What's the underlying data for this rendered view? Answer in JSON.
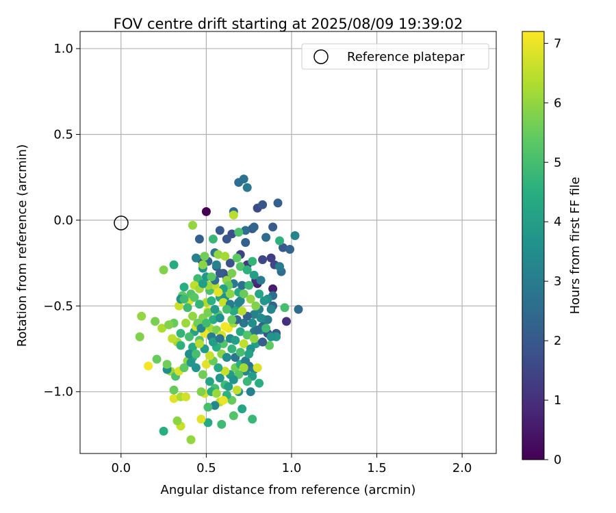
{
  "chart_data": {
    "type": "scatter",
    "title": "FOV centre drift starting at 2025/08/09 19:39:02",
    "xlabel": "Angular distance from reference (arcmin)",
    "ylabel": "Rotation from reference (arcmin)",
    "xlim": [
      -0.24,
      2.2
    ],
    "ylim": [
      -1.36,
      1.1
    ],
    "xticks": [
      0.0,
      0.5,
      1.0,
      1.5,
      2.0
    ],
    "xtick_labels": [
      "0.0",
      "0.5",
      "1.0",
      "1.5",
      "2.0"
    ],
    "yticks": [
      -1.0,
      -0.5,
      0.0,
      0.5,
      1.0
    ],
    "ytick_labels": [
      "−1.0",
      "−0.5",
      "0.0",
      "0.5",
      "1.0"
    ],
    "grid": true,
    "legend": {
      "position": "top-right",
      "entries": [
        "Reference platepar"
      ]
    },
    "reference_point": {
      "x": 0.0,
      "y": 0.0,
      "label": "Reference platepar"
    },
    "colorbar": {
      "label": "Hours from first FF file",
      "colormap": "viridis",
      "range": [
        0,
        7.2
      ],
      "ticks": [
        0,
        1,
        2,
        3,
        4,
        5,
        6,
        7
      ],
      "tick_labels": [
        "0",
        "1",
        "2",
        "3",
        "4",
        "5",
        "6",
        "7"
      ]
    },
    "points": [
      [
        0.5,
        0.05,
        0.0
      ],
      [
        0.89,
        -0.4,
        0.6
      ],
      [
        0.8,
        -0.37,
        0.7
      ],
      [
        0.97,
        -0.59,
        1.0
      ],
      [
        0.79,
        -0.35,
        0.9
      ],
      [
        0.74,
        -0.26,
        1.2
      ],
      [
        0.8,
        0.07,
        1.6
      ],
      [
        0.83,
        0.09,
        1.9
      ],
      [
        0.9,
        -0.26,
        1.6
      ],
      [
        0.88,
        -0.22,
        1.3
      ],
      [
        0.95,
        -0.16,
        2.0
      ],
      [
        0.83,
        -0.23,
        1.5
      ],
      [
        0.77,
        -0.05,
        1.8
      ],
      [
        0.7,
        -0.2,
        1.4
      ],
      [
        0.65,
        -0.08,
        1.7
      ],
      [
        0.73,
        -0.13,
        2.2
      ],
      [
        0.69,
        0.22,
        2.6
      ],
      [
        0.72,
        0.24,
        2.7
      ],
      [
        0.74,
        0.19,
        2.9
      ],
      [
        0.66,
        0.05,
        2.5
      ],
      [
        0.46,
        -0.11,
        2.2
      ],
      [
        0.62,
        -0.11,
        1.9
      ],
      [
        0.58,
        -0.06,
        2.0
      ],
      [
        0.64,
        -0.25,
        1.8
      ],
      [
        0.56,
        -0.27,
        2.1
      ],
      [
        0.47,
        -0.23,
        1.4
      ],
      [
        0.51,
        -0.24,
        2.3
      ],
      [
        0.6,
        -0.31,
        1.9
      ],
      [
        0.55,
        -0.19,
        2.8
      ],
      [
        0.92,
        0.1,
        2.2
      ],
      [
        0.89,
        -0.04,
        2.1
      ],
      [
        0.78,
        -0.04,
        2.4
      ],
      [
        0.73,
        -0.06,
        2.6
      ],
      [
        0.85,
        -0.1,
        2.5
      ],
      [
        0.99,
        -0.17,
        2.3
      ],
      [
        0.94,
        -0.3,
        2.6
      ],
      [
        0.93,
        -0.27,
        3.0
      ],
      [
        1.02,
        -0.09,
        3.2
      ],
      [
        0.93,
        -0.12,
        4.6
      ],
      [
        0.96,
        -0.51,
        5.0
      ],
      [
        1.04,
        -0.52,
        2.5
      ],
      [
        0.89,
        -0.44,
        2.6
      ],
      [
        0.86,
        -0.46,
        3.6
      ],
      [
        0.89,
        -0.5,
        2.3
      ],
      [
        0.81,
        -0.52,
        3.2
      ],
      [
        0.84,
        -0.58,
        4.4
      ],
      [
        0.82,
        -0.64,
        3.5
      ],
      [
        0.91,
        -0.66,
        2.0
      ],
      [
        0.86,
        -0.66,
        1.8
      ],
      [
        0.83,
        -0.62,
        2.4
      ],
      [
        0.91,
        -0.68,
        3.8
      ],
      [
        0.79,
        -0.72,
        4.0
      ],
      [
        0.87,
        -0.73,
        5.4
      ],
      [
        0.78,
        -0.65,
        2.9
      ],
      [
        0.78,
        -0.55,
        3.1
      ],
      [
        0.72,
        -0.6,
        2.8
      ],
      [
        0.74,
        -0.56,
        2.2
      ],
      [
        0.68,
        -0.52,
        4.0
      ],
      [
        0.7,
        -0.47,
        3.4
      ],
      [
        0.69,
        -0.42,
        4.3
      ],
      [
        0.71,
        -0.38,
        2.7
      ],
      [
        0.66,
        -0.37,
        2.9
      ],
      [
        0.62,
        -0.34,
        1.7
      ],
      [
        0.58,
        -0.31,
        2.1
      ],
      [
        0.56,
        -0.26,
        3.2
      ],
      [
        0.65,
        -0.31,
        5.7
      ],
      [
        0.69,
        -0.07,
        5.1
      ],
      [
        0.66,
        0.03,
        6.4
      ],
      [
        0.54,
        -0.11,
        4.8
      ],
      [
        0.57,
        -0.2,
        6.0
      ],
      [
        0.44,
        -0.22,
        3.2
      ],
      [
        0.48,
        -0.28,
        3.6
      ],
      [
        0.49,
        -0.21,
        5.6
      ],
      [
        0.61,
        -0.21,
        6.2
      ],
      [
        0.68,
        -0.22,
        5.4
      ],
      [
        0.7,
        -0.27,
        5.2
      ],
      [
        0.74,
        -0.29,
        4.6
      ],
      [
        0.77,
        -0.24,
        4.7
      ],
      [
        0.42,
        -0.03,
        6.0
      ],
      [
        0.5,
        -0.33,
        3.8
      ],
      [
        0.45,
        -0.34,
        4.9
      ],
      [
        0.52,
        -0.41,
        5.1
      ],
      [
        0.55,
        -0.38,
        6.4
      ],
      [
        0.58,
        -0.45,
        4.2
      ],
      [
        0.61,
        -0.45,
        3.6
      ],
      [
        0.62,
        -0.35,
        6.0
      ],
      [
        0.63,
        -0.38,
        5.5
      ],
      [
        0.64,
        -0.43,
        5.9
      ],
      [
        0.6,
        -0.48,
        6.6
      ],
      [
        0.57,
        -0.55,
        5.3
      ],
      [
        0.54,
        -0.58,
        4.5
      ],
      [
        0.51,
        -0.53,
        6.9
      ],
      [
        0.48,
        -0.57,
        5.8
      ],
      [
        0.52,
        -0.63,
        6.3
      ],
      [
        0.49,
        -0.66,
        7.0
      ],
      [
        0.46,
        -0.7,
        5.2
      ],
      [
        0.43,
        -0.65,
        4.1
      ],
      [
        0.4,
        -0.68,
        5.0
      ],
      [
        0.42,
        -0.74,
        4.4
      ],
      [
        0.38,
        -0.6,
        6.1
      ],
      [
        0.35,
        -0.66,
        4.7
      ],
      [
        0.33,
        -0.71,
        6.2
      ],
      [
        0.31,
        -0.6,
        5.5
      ],
      [
        0.34,
        -0.5,
        6.6
      ],
      [
        0.36,
        -0.44,
        5.4
      ],
      [
        0.37,
        -0.39,
        4.5
      ],
      [
        0.4,
        -0.47,
        6.7
      ],
      [
        0.42,
        -0.56,
        6.0
      ],
      [
        0.44,
        -0.62,
        6.8
      ],
      [
        0.41,
        -0.43,
        5.2
      ],
      [
        0.39,
        -0.51,
        4.9
      ],
      [
        0.29,
        -0.88,
        6.1
      ],
      [
        0.27,
        -0.87,
        3.5
      ],
      [
        0.32,
        -0.91,
        5.1
      ],
      [
        0.34,
        -0.88,
        6.8
      ],
      [
        0.39,
        -0.82,
        5.9
      ],
      [
        0.42,
        -0.8,
        4.3
      ],
      [
        0.44,
        -0.86,
        3.7
      ],
      [
        0.48,
        -0.9,
        5.6
      ],
      [
        0.5,
        -0.84,
        6.9
      ],
      [
        0.52,
        -0.94,
        4.2
      ],
      [
        0.55,
        -0.98,
        5.0
      ],
      [
        0.58,
        -0.92,
        3.8
      ],
      [
        0.61,
        -0.96,
        4.9
      ],
      [
        0.64,
        -0.9,
        3.9
      ],
      [
        0.67,
        -0.86,
        5.6
      ],
      [
        0.7,
        -0.84,
        4.5
      ],
      [
        0.73,
        -0.88,
        3.4
      ],
      [
        0.75,
        -0.85,
        2.7
      ],
      [
        0.78,
        -0.87,
        3.1
      ],
      [
        0.8,
        -0.86,
        6.8
      ],
      [
        0.77,
        -0.91,
        4.0
      ],
      [
        0.74,
        -0.94,
        4.8
      ],
      [
        0.69,
        -1.0,
        3.6
      ],
      [
        0.65,
        -1.05,
        5.5
      ],
      [
        0.62,
        -1.02,
        4.6
      ],
      [
        0.58,
        -1.06,
        6.5
      ],
      [
        0.55,
        -1.08,
        3.3
      ],
      [
        0.51,
        -1.09,
        5.0
      ],
      [
        0.49,
        -1.01,
        6.7
      ],
      [
        0.47,
        -1.0,
        5.8
      ],
      [
        0.53,
        -1.0,
        4.4
      ],
      [
        0.56,
        -1.01,
        6.1
      ],
      [
        0.6,
        -1.05,
        7.0
      ],
      [
        0.68,
        -0.99,
        6.5
      ],
      [
        0.71,
        -1.1,
        4.2
      ],
      [
        0.66,
        -1.14,
        5.2
      ],
      [
        0.77,
        -1.16,
        4.8
      ],
      [
        0.81,
        -0.95,
        4.5
      ],
      [
        0.76,
        -1.0,
        3.1
      ],
      [
        0.59,
        -1.19,
        4.9
      ],
      [
        0.51,
        -1.18,
        4.3
      ],
      [
        0.47,
        -1.16,
        6.9
      ],
      [
        0.41,
        -1.28,
        6.0
      ],
      [
        0.35,
        -1.2,
        6.6
      ],
      [
        0.33,
        -1.17,
        5.9
      ],
      [
        0.25,
        -1.23,
        4.5
      ],
      [
        0.31,
        -1.04,
        6.9
      ],
      [
        0.35,
        -1.03,
        6.3
      ],
      [
        0.38,
        -1.03,
        6.7
      ],
      [
        0.31,
        -0.99,
        5.5
      ],
      [
        0.27,
        -0.84,
        5.6
      ],
      [
        0.21,
        -0.81,
        5.5
      ],
      [
        0.16,
        -0.85,
        7.1
      ],
      [
        0.11,
        -0.68,
        5.8
      ],
      [
        0.12,
        -0.56,
        6.0
      ],
      [
        0.2,
        -0.59,
        5.7
      ],
      [
        0.24,
        -0.63,
        6.3
      ],
      [
        0.28,
        -0.61,
        5.8
      ],
      [
        0.3,
        -0.69,
        6.5
      ],
      [
        0.35,
        -0.73,
        4.6
      ],
      [
        0.37,
        -0.86,
        5.4
      ],
      [
        0.4,
        -0.78,
        3.5
      ],
      [
        0.41,
        -0.83,
        3.8
      ],
      [
        0.25,
        -0.29,
        5.8
      ],
      [
        0.31,
        -0.26,
        4.4
      ],
      [
        0.35,
        -0.46,
        3.6
      ],
      [
        0.37,
        -0.46,
        4.9
      ],
      [
        0.43,
        -0.45,
        5.3
      ],
      [
        0.43,
        -0.38,
        6.5
      ],
      [
        0.46,
        -0.4,
        6.2
      ],
      [
        0.48,
        -0.26,
        5.9
      ],
      [
        0.5,
        -0.48,
        6.3
      ],
      [
        0.53,
        -0.47,
        4.6
      ],
      [
        0.51,
        -0.54,
        5.7
      ],
      [
        0.55,
        -0.52,
        3.9
      ],
      [
        0.58,
        -0.57,
        3.6
      ],
      [
        0.56,
        -0.64,
        5.7
      ],
      [
        0.59,
        -0.67,
        6.8
      ],
      [
        0.6,
        -0.72,
        5.2
      ],
      [
        0.63,
        -0.63,
        7.0
      ],
      [
        0.64,
        -0.69,
        3.4
      ],
      [
        0.67,
        -0.7,
        4.0
      ],
      [
        0.66,
        -0.6,
        6.2
      ],
      [
        0.7,
        -0.65,
        4.3
      ],
      [
        0.72,
        -0.72,
        6.5
      ],
      [
        0.74,
        -0.67,
        5.2
      ],
      [
        0.76,
        -0.75,
        3.7
      ],
      [
        0.78,
        -0.69,
        6.0
      ],
      [
        0.8,
        -0.64,
        2.6
      ],
      [
        0.83,
        -0.71,
        2.1
      ],
      [
        0.86,
        -0.58,
        3.0
      ],
      [
        0.88,
        -0.52,
        3.3
      ],
      [
        0.84,
        -0.47,
        3.8
      ],
      [
        0.81,
        -0.43,
        4.2
      ],
      [
        0.82,
        -0.35,
        3.0
      ],
      [
        0.78,
        -0.32,
        4.0
      ],
      [
        0.75,
        -0.38,
        4.8
      ],
      [
        0.72,
        -0.43,
        5.5
      ],
      [
        0.69,
        -0.48,
        3.2
      ],
      [
        0.71,
        -0.53,
        6.4
      ],
      [
        0.68,
        -0.58,
        2.4
      ],
      [
        0.66,
        -0.53,
        4.4
      ],
      [
        0.64,
        -0.49,
        3.0
      ],
      [
        0.62,
        -0.52,
        5.0
      ],
      [
        0.6,
        -0.4,
        4.1
      ],
      [
        0.57,
        -0.42,
        6.9
      ],
      [
        0.55,
        -0.35,
        2.6
      ],
      [
        0.53,
        -0.33,
        5.3
      ],
      [
        0.51,
        -0.38,
        6.1
      ],
      [
        0.48,
        -0.37,
        4.0
      ],
      [
        0.46,
        -0.49,
        4.7
      ],
      [
        0.45,
        -0.6,
        5.6
      ],
      [
        0.47,
        -0.63,
        3.3
      ],
      [
        0.5,
        -0.6,
        4.9
      ],
      [
        0.53,
        -0.68,
        3.0
      ],
      [
        0.56,
        -0.74,
        4.5
      ],
      [
        0.59,
        -0.78,
        5.9
      ],
      [
        0.62,
        -0.8,
        3.5
      ],
      [
        0.65,
        -0.75,
        4.7
      ],
      [
        0.67,
        -0.8,
        2.8
      ],
      [
        0.7,
        -0.77,
        5.0
      ],
      [
        0.73,
        -0.82,
        3.0
      ],
      [
        0.75,
        -0.78,
        4.1
      ],
      [
        0.72,
        -0.86,
        6.2
      ],
      [
        0.69,
        -0.9,
        5.3
      ],
      [
        0.66,
        -0.93,
        3.7
      ],
      [
        0.63,
        -0.97,
        4.0
      ],
      [
        0.61,
        -0.88,
        6.6
      ],
      [
        0.57,
        -0.86,
        4.3
      ],
      [
        0.54,
        -0.82,
        5.5
      ],
      [
        0.52,
        -0.79,
        6.6
      ],
      [
        0.49,
        -0.75,
        3.9
      ],
      [
        0.46,
        -0.72,
        6.4
      ],
      [
        0.44,
        -0.78,
        5.0
      ],
      [
        0.54,
        -0.71,
        4.0
      ],
      [
        0.58,
        -0.69,
        2.8
      ],
      [
        0.61,
        -0.62,
        7.1
      ],
      [
        0.65,
        -0.58,
        5.5
      ],
      [
        0.76,
        -0.46,
        6.0
      ],
      [
        0.79,
        -0.5,
        5.8
      ],
      [
        0.82,
        -0.57,
        3.4
      ],
      [
        0.85,
        -0.63,
        4.9
      ],
      [
        0.88,
        -0.68,
        3.7
      ],
      [
        0.77,
        -0.6,
        3.5
      ]
    ]
  }
}
